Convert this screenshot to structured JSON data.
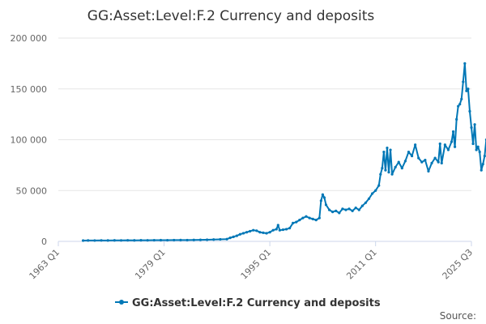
{
  "chart_data": {
    "type": "line",
    "title": "GG:Asset:Level:F.2 Currency and deposits",
    "xlabel": "",
    "ylabel": "",
    "ylim": [
      0,
      200000
    ],
    "y_ticks": [
      0,
      50000,
      100000,
      150000,
      200000
    ],
    "y_tick_labels": [
      "0",
      "50 000",
      "100 000",
      "150 000",
      "200 000"
    ],
    "x_range": [
      1963.0,
      2025.5
    ],
    "x_tick_labels": [
      "1963 Q1",
      "1979 Q1",
      "1995 Q1",
      "2011 Q1",
      "2025 Q3"
    ],
    "x_tick_values": [
      1963.0,
      1979.0,
      1995.0,
      2011.0,
      2025.5
    ],
    "grid": true,
    "legend_position": "bottom-center",
    "color": "#0077b6",
    "series": [
      {
        "name": "GG:Asset:Level:F.2 Currency and deposits",
        "points": [
          [
            1966.75,
            800
          ],
          [
            1967.5,
            900
          ],
          [
            1968.5,
            850
          ],
          [
            1969.5,
            950
          ],
          [
            1970.5,
            900
          ],
          [
            1971.5,
            1000
          ],
          [
            1972.5,
            950
          ],
          [
            1973.5,
            1050
          ],
          [
            1974.5,
            1000
          ],
          [
            1975.5,
            1100
          ],
          [
            1976.5,
            1050
          ],
          [
            1977.5,
            1150
          ],
          [
            1978.5,
            1200
          ],
          [
            1979.5,
            1150
          ],
          [
            1980.5,
            1250
          ],
          [
            1981.5,
            1300
          ],
          [
            1982.5,
            1250
          ],
          [
            1983.5,
            1400
          ],
          [
            1984.5,
            1500
          ],
          [
            1985.5,
            1600
          ],
          [
            1986.5,
            1800
          ],
          [
            1987.5,
            2000
          ],
          [
            1988.5,
            2200
          ],
          [
            1989.0,
            3500
          ],
          [
            1989.5,
            4500
          ],
          [
            1990.0,
            5500
          ],
          [
            1990.5,
            7000
          ],
          [
            1991.0,
            8000
          ],
          [
            1991.5,
            9000
          ],
          [
            1992.0,
            10000
          ],
          [
            1992.5,
            11000
          ],
          [
            1993.0,
            10500
          ],
          [
            1993.5,
            9000
          ],
          [
            1994.0,
            8500
          ],
          [
            1994.5,
            8000
          ],
          [
            1995.0,
            9000
          ],
          [
            1995.5,
            11000
          ],
          [
            1996.0,
            12000
          ],
          [
            1996.25,
            16000
          ],
          [
            1996.5,
            11000
          ],
          [
            1997.0,
            11500
          ],
          [
            1997.5,
            12000
          ],
          [
            1998.0,
            13000
          ],
          [
            1998.5,
            18000
          ],
          [
            1999.0,
            19000
          ],
          [
            1999.5,
            21000
          ],
          [
            2000.0,
            23000
          ],
          [
            2000.5,
            24500
          ],
          [
            2001.0,
            23000
          ],
          [
            2001.5,
            22000
          ],
          [
            2002.0,
            21000
          ],
          [
            2002.5,
            23000
          ],
          [
            2002.75,
            40000
          ],
          [
            2003.0,
            46000
          ],
          [
            2003.25,
            43000
          ],
          [
            2003.5,
            36000
          ],
          [
            2004.0,
            31000
          ],
          [
            2004.5,
            29000
          ],
          [
            2005.0,
            30000
          ],
          [
            2005.5,
            28000
          ],
          [
            2006.0,
            32000
          ],
          [
            2006.5,
            31000
          ],
          [
            2007.0,
            32000
          ],
          [
            2007.5,
            30000
          ],
          [
            2008.0,
            33000
          ],
          [
            2008.5,
            31000
          ],
          [
            2009.0,
            35000
          ],
          [
            2009.5,
            38000
          ],
          [
            2010.0,
            42000
          ],
          [
            2010.5,
            47000
          ],
          [
            2011.0,
            50000
          ],
          [
            2011.5,
            55000
          ],
          [
            2011.75,
            66000
          ],
          [
            2012.0,
            72000
          ],
          [
            2012.25,
            88000
          ],
          [
            2012.5,
            70000
          ],
          [
            2012.75,
            92000
          ],
          [
            2013.0,
            68000
          ],
          [
            2013.25,
            90000
          ],
          [
            2013.5,
            66000
          ],
          [
            2014.0,
            73000
          ],
          [
            2014.5,
            78000
          ],
          [
            2015.0,
            72000
          ],
          [
            2015.5,
            79000
          ],
          [
            2016.0,
            88000
          ],
          [
            2016.5,
            84000
          ],
          [
            2017.0,
            95000
          ],
          [
            2017.5,
            82000
          ],
          [
            2018.0,
            78000
          ],
          [
            2018.5,
            80000
          ],
          [
            2019.0,
            69000
          ],
          [
            2019.5,
            77000
          ],
          [
            2020.0,
            82000
          ],
          [
            2020.5,
            78000
          ],
          [
            2020.75,
            96000
          ],
          [
            2021.0,
            77000
          ],
          [
            2021.5,
            95000
          ],
          [
            2022.0,
            90000
          ],
          [
            2022.5,
            98000
          ],
          [
            2022.75,
            108000
          ],
          [
            2023.0,
            93000
          ],
          [
            2023.25,
            120000
          ],
          [
            2023.5,
            133000
          ],
          [
            2023.75,
            135000
          ],
          [
            2024.0,
            140000
          ],
          [
            2024.25,
            157000
          ],
          [
            2024.5,
            175000
          ],
          [
            2024.75,
            148000
          ],
          [
            2025.0,
            150000
          ],
          [
            2025.25,
            128000
          ],
          [
            2025.5,
            112000
          ],
          [
            2025.75,
            96000
          ],
          [
            2026.0,
            115000
          ],
          [
            2026.25,
            90000
          ],
          [
            2026.5,
            93000
          ],
          [
            2026.75,
            88000
          ],
          [
            2027.0,
            70000
          ],
          [
            2027.25,
            76000
          ],
          [
            2027.5,
            84000
          ],
          [
            2027.75,
            100000
          ]
        ]
      }
    ],
    "source_label": "Source:"
  }
}
